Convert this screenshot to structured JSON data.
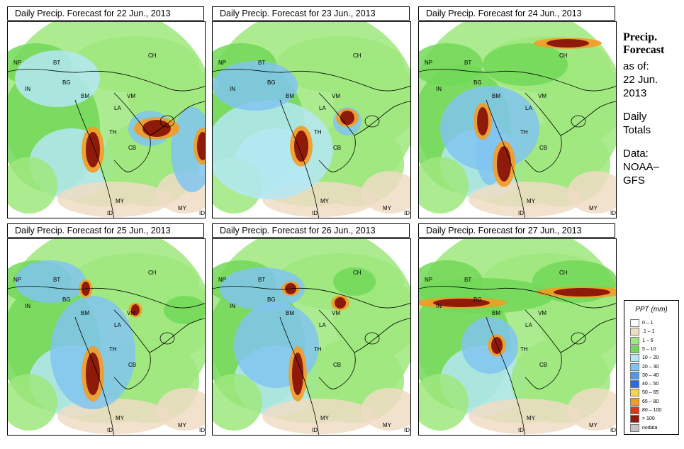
{
  "panels": [
    {
      "title": "Daily Precip. Forecast for  22 Jun., 2013"
    },
    {
      "title": "Daily Precip. Forecast for  23 Jun., 2013"
    },
    {
      "title": "Daily Precip. Forecast for  24 Jun., 2013"
    },
    {
      "title": "Daily Precip. Forecast for  25 Jun., 2013"
    },
    {
      "title": "Daily Precip. Forecast for  26 Jun., 2013"
    },
    {
      "title": "Daily Precip. Forecast for  27 Jun., 2013"
    }
  ],
  "map_labels": [
    "NP",
    "BT",
    "IN",
    "BG",
    "BM",
    "CH",
    "VM",
    "LA",
    "TH",
    "CB",
    "MY",
    "ID",
    "MY",
    "ID"
  ],
  "sidebar": {
    "heading1": "Precip.",
    "heading2": "Forecast",
    "asof1": "as of:",
    "asof2": "22 Jun.",
    "asof3": "2013",
    "daily1": "Daily",
    "daily2": "Totals",
    "data1": "Data:",
    "data2": "NOAA–",
    "data3": "GFS"
  },
  "legend": {
    "title": "PPT (mm)",
    "items": [
      {
        "label": "0 – 1",
        "color": "#fcfcfc"
      },
      {
        "label": ".1 – 1",
        "color": "#efdcc4"
      },
      {
        "label": "1 – 5",
        "color": "#9de87c"
      },
      {
        "label": "5 – 10",
        "color": "#72d858"
      },
      {
        "label": "10 – 20",
        "color": "#b4e8f4"
      },
      {
        "label": "20 – 30",
        "color": "#80c4f0"
      },
      {
        "label": "30 – 40",
        "color": "#4f99ea"
      },
      {
        "label": "40 – 50",
        "color": "#2a6ce0"
      },
      {
        "label": "50 – 65",
        "color": "#f8d448"
      },
      {
        "label": "65 – 80",
        "color": "#f59a22"
      },
      {
        "label": "80 – 100",
        "color": "#d83812"
      },
      {
        "label": "> 100",
        "color": "#8e1a0a"
      },
      {
        "label": "nodata",
        "color": "#c4c4c4"
      }
    ]
  }
}
